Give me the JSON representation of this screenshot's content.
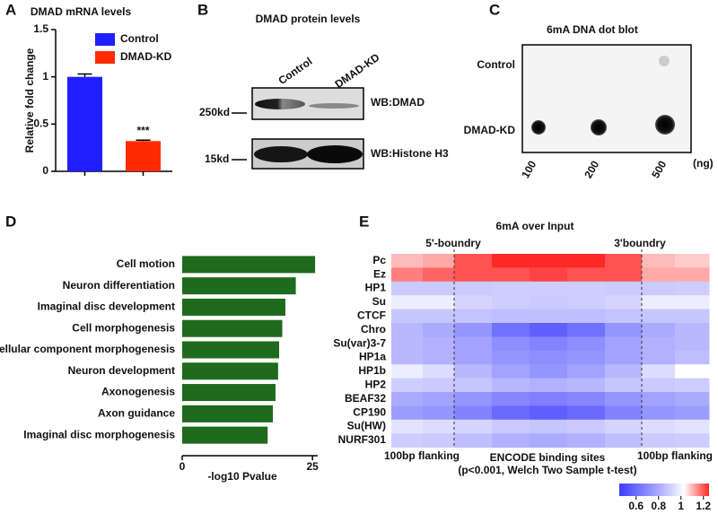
{
  "chart_data": [
    {
      "type": "bar",
      "panel": "A",
      "title": "DMAD mRNA levels",
      "ylabel": "Relative fold change",
      "categories": [
        null,
        null
      ],
      "series": [
        {
          "name": "Control",
          "color": "#1f1fff",
          "values": [
            1.0,
            null
          ],
          "errors": [
            0.03,
            null
          ]
        },
        {
          "name": "DMAD-KD",
          "color": "#ff2a00",
          "values": [
            null,
            0.32
          ],
          "errors": [
            null,
            0.01
          ]
        }
      ],
      "annotations": [
        null,
        "***"
      ],
      "ylim": [
        0,
        1.5
      ],
      "yticks": [
        0,
        0.5,
        1,
        1.5
      ],
      "legend": "upper right"
    },
    {
      "type": "barh",
      "panel": "D",
      "xlabel": "-log10 Pvalue",
      "categories": [
        "Cell motion",
        "Neuron differentiation",
        "Imaginal disc development",
        "Cell morphogenesis",
        "Cellular component morphogenesis",
        "Neuron development",
        "Axonogenesis",
        "Axon guidance",
        "Imaginal disc morphogenesis"
      ],
      "values": [
        25.5,
        21.8,
        19.8,
        19.2,
        18.6,
        18.4,
        17.9,
        17.4,
        16.4
      ],
      "color": "#1e6b1e",
      "label_colors": [
        "#111",
        "#e8262a",
        "#111",
        "#111",
        "#111",
        "#e8262a",
        "#e8262a",
        "#e8262a",
        "#111"
      ],
      "xlim": [
        0,
        26
      ],
      "xticks": [
        0,
        25
      ]
    },
    {
      "type": "heatmap",
      "panel": "E",
      "title": "6mA over Input",
      "rows": [
        "Pc",
        "Ez",
        "HP1",
        "Su",
        "CTCF",
        "Chro",
        "Su(var)3-7",
        "HP1a",
        "HP1b",
        "HP2",
        "BEAF32",
        "CP190",
        "Su(HW)",
        "NURF301"
      ],
      "row_colors": [
        "#e8262a",
        "#e8262a",
        "#111",
        "#111",
        "#111",
        "#111",
        "#111",
        "#111",
        "#111",
        "#111",
        "#111",
        "#111",
        "#111",
        "#111"
      ],
      "z": [
        [
          1.08,
          1.1,
          1.2,
          1.25,
          1.25,
          1.25,
          1.2,
          1.08,
          1.06
        ],
        [
          1.15,
          1.18,
          1.2,
          1.2,
          1.22,
          1.2,
          1.2,
          1.1,
          1.1
        ],
        [
          0.85,
          0.85,
          0.85,
          0.86,
          0.86,
          0.86,
          0.85,
          0.85,
          0.86
        ],
        [
          0.95,
          0.95,
          0.88,
          0.86,
          0.85,
          0.86,
          0.88,
          0.95,
          0.95
        ],
        [
          0.84,
          0.84,
          0.83,
          0.82,
          0.82,
          0.82,
          0.83,
          0.84,
          0.84
        ],
        [
          0.8,
          0.76,
          0.7,
          0.6,
          0.55,
          0.6,
          0.7,
          0.76,
          0.8
        ],
        [
          0.8,
          0.78,
          0.74,
          0.68,
          0.65,
          0.68,
          0.74,
          0.78,
          0.8
        ],
        [
          0.8,
          0.78,
          0.74,
          0.7,
          0.68,
          0.7,
          0.74,
          0.78,
          0.82
        ],
        [
          0.95,
          0.9,
          0.8,
          0.74,
          0.7,
          0.74,
          0.8,
          0.9,
          1.0
        ],
        [
          0.86,
          0.85,
          0.84,
          0.8,
          0.78,
          0.8,
          0.84,
          0.85,
          0.86
        ],
        [
          0.76,
          0.74,
          0.7,
          0.66,
          0.64,
          0.66,
          0.7,
          0.74,
          0.76
        ],
        [
          0.72,
          0.7,
          0.65,
          0.58,
          0.55,
          0.58,
          0.65,
          0.7,
          0.72
        ],
        [
          0.92,
          0.9,
          0.88,
          0.85,
          0.84,
          0.85,
          0.88,
          0.9,
          0.92
        ],
        [
          0.86,
          0.85,
          0.82,
          0.78,
          0.76,
          0.78,
          0.82,
          0.85,
          0.86
        ]
      ],
      "boundary_labels": [
        "5'-boundry",
        "3'boundry"
      ],
      "xlabel": [
        "100bp flanking",
        "ENCODE binding sites",
        "(p<0.001, Welch Two Sample t-test)",
        "100bp flanking"
      ],
      "clim": [
        0.45,
        1.25
      ],
      "cticks": [
        0.6,
        0.8,
        1.0,
        1.2
      ]
    }
  ],
  "panels": {
    "B": {
      "label": "B",
      "title": "DMAD protein levels",
      "lanes": [
        "Control",
        "DMAD-KD"
      ],
      "blots": [
        "WB:DMAD",
        "WB:Histone H3"
      ],
      "markers": [
        "250kd",
        "15kd"
      ]
    },
    "C": {
      "label": "C",
      "title": "6mA DNA dot blot",
      "rows": [
        "Control",
        "DMAD-KD"
      ],
      "columns": [
        "100",
        "200",
        "500"
      ],
      "unit": "(ng)"
    }
  }
}
